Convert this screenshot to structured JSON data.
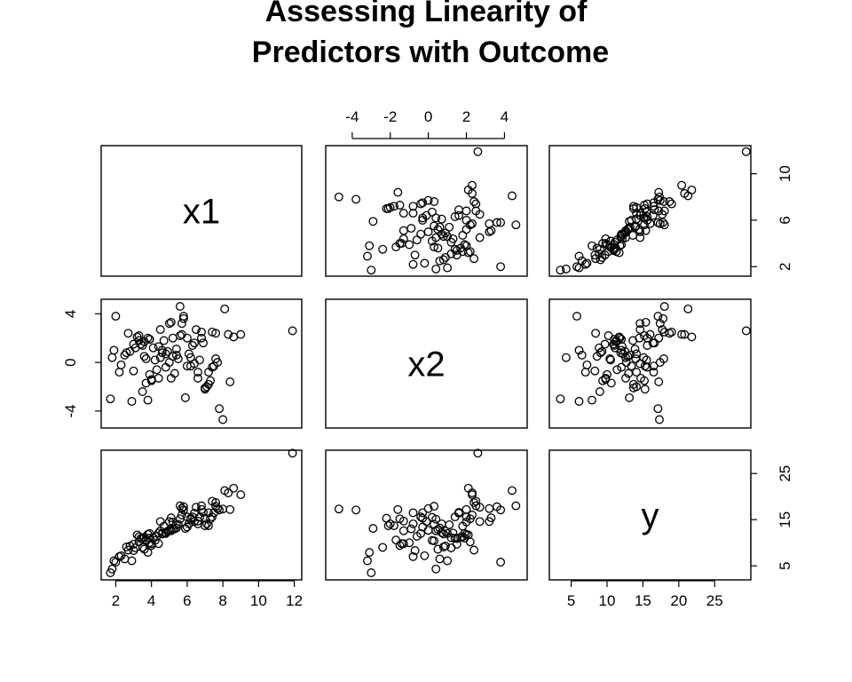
{
  "chart_data": {
    "type": "scatter",
    "kind": "scatterplot-matrix",
    "title_lines": [
      "Assessing Linearity of",
      "Predictors with Outcome"
    ],
    "variables": [
      {
        "name": "x1",
        "range": [
          1.6,
          12.0
        ],
        "ticks": [
          2,
          4,
          6,
          8,
          10,
          12
        ],
        "tick_labels": [
          "2",
          "4",
          "6",
          "8",
          "10",
          "12"
        ]
      },
      {
        "name": "x2",
        "range": [
          -5.0,
          4.8
        ],
        "ticks": [
          -4,
          -2,
          0,
          2,
          4
        ],
        "tick_labels": [
          "-4",
          "-2",
          "0",
          "2",
          "4"
        ]
      },
      {
        "name": "y",
        "range": [
          3.0,
          29.0
        ],
        "ticks": [
          5,
          10,
          15,
          20,
          25
        ],
        "tick_labels": [
          "5",
          "10",
          "15",
          "20",
          "25"
        ]
      }
    ],
    "y_axis_ticks": {
      "x1": {
        "ticks": [
          2,
          6,
          10
        ],
        "tick_labels": [
          "2",
          "6",
          "10"
        ]
      },
      "x2": {
        "ticks": [
          -4,
          0,
          4
        ],
        "tick_labels": [
          "-4",
          "0",
          "4"
        ]
      },
      "y": {
        "ticks": [
          5,
          15,
          25
        ],
        "tick_labels": [
          "5",
          "15",
          "25"
        ]
      }
    },
    "axis_placement": {
      "x1": {
        "tick_axis_side": "bottom"
      },
      "x2": {
        "tick_axis_side": "top"
      },
      "y": {
        "tick_axis_side": "bottom"
      }
    },
    "row_axis_placement": {
      "x1": "right",
      "x2": "left",
      "y": "right"
    },
    "observations": {
      "x1": [
        1.7,
        1.8,
        2.0,
        2.3,
        2.5,
        2.7,
        2.9,
        3.1,
        3.3,
        3.5,
        3.6,
        3.7,
        3.8,
        3.9,
        4.0,
        4.2,
        4.4,
        4.6,
        4.8,
        5.0,
        5.2,
        5.4,
        5.6,
        5.8,
        6.0,
        6.2,
        6.4,
        6.6,
        6.8,
        7.0,
        7.2,
        7.4,
        7.6,
        7.8,
        8.0,
        8.3,
        8.6,
        9.0,
        11.9,
        1.9,
        2.2,
        2.6,
        3.0,
        3.4,
        3.6,
        3.8,
        4.1,
        4.3,
        4.5,
        4.7,
        4.9,
        5.1,
        5.3,
        5.5,
        5.7,
        5.9,
        6.1,
        6.3,
        6.5,
        6.7,
        6.9,
        7.1,
        7.3,
        7.5,
        7.7,
        8.1,
        3.2,
        3.5,
        3.7,
        3.9,
        4.4,
        4.8,
        5.2,
        5.6,
        6.0,
        6.4,
        6.8,
        7.2,
        7.6,
        8.4,
        2.8,
        3.3,
        4.0,
        4.6,
        5.0,
        5.4,
        5.8,
        6.2,
        6.6,
        7.0,
        7.4,
        3.0,
        3.9,
        4.5,
        5.1,
        5.7
      ],
      "x2": [
        -3.0,
        0.4,
        3.8,
        -0.2,
        0.6,
        2.4,
        -3.2,
        1.2,
        2.2,
        -2.4,
        0.5,
        -1.7,
        -3.1,
        1.9,
        -1.4,
        0.2,
        1.3,
        0.8,
        -0.4,
        3.2,
        2.0,
        0.6,
        2.2,
        3.8,
        2.0,
        -0.3,
        1.6,
        -1.3,
        2.5,
        -2.2,
        -0.8,
        2.5,
        0.3,
        -3.8,
        -4.7,
        2.3,
        2.1,
        2.3,
        2.6,
        1.0,
        -0.8,
        0.8,
        -0.7,
        1.5,
        1.7,
        2.0,
        1.2,
        -0.6,
        0.4,
        1.8,
        0.9,
        3.3,
        -0.9,
        0.3,
        3.2,
        -2.9,
        0.7,
        1.4,
        2.7,
        0.2,
        1.6,
        -2.0,
        -1.5,
        -0.3,
        0.0,
        4.4,
        2.1,
        1.4,
        0.3,
        -1.0,
        -1.3,
        0.7,
        0.5,
        4.6,
        -0.3,
        -0.1,
        2.0,
        -1.8,
        2.4,
        -1.6,
        0.9,
        1.8,
        -1.5,
        1.0,
        0.0,
        1.1,
        3.6,
        0.4,
        -0.8,
        -2.1,
        -0.4,
        1.5,
        1.9,
        2.7,
        -1.3,
        2.3
      ],
      "y": [
        3.5,
        4.3,
        5.8,
        7.2,
        6.5,
        8.4,
        6.1,
        8.9,
        10.2,
        9.0,
        8.6,
        10.6,
        7.9,
        11.0,
        9.8,
        10.5,
        12.1,
        11.9,
        12.0,
        14.6,
        14.5,
        13.2,
        15.2,
        17.1,
        15.6,
        15.3,
        16.4,
        14.7,
        18.0,
        15.3,
        16.5,
        19.0,
        17.9,
        17.1,
        17.3,
        20.8,
        21.8,
        20.4,
        29.4,
        6.1,
        7.0,
        9.1,
        8.3,
        10.9,
        11.2,
        11.8,
        11.1,
        11.4,
        12.6,
        13.6,
        12.5,
        15.4,
        13.0,
        14.0,
        17.4,
        13.1,
        14.1,
        15.6,
        17.7,
        15.5,
        16.6,
        14.1,
        15.2,
        16.5,
        17.4,
        21.3,
        11.7,
        11.0,
        10.4,
        10.0,
        9.8,
        12.2,
        12.9,
        18.0,
        13.4,
        14.6,
        17.2,
        13.7,
        18.7,
        17.2,
        9.3,
        11.3,
        9.4,
        12.0,
        12.7,
        13.9,
        17.8,
        15.1,
        14.1,
        13.7,
        15.6,
        9.7,
        12.0,
        14.6,
        12.6,
        16.0
      ]
    }
  }
}
